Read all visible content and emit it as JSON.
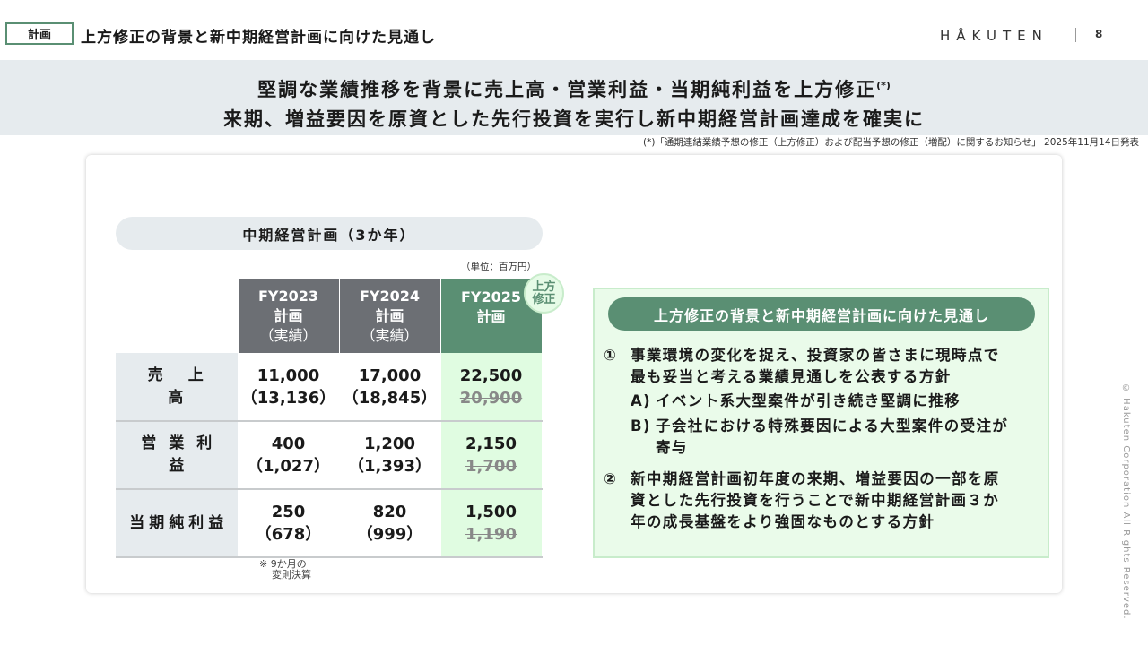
{
  "header": {
    "tag": "計画",
    "title": "上方修正の背景と新中期経営計画に向けた見通し",
    "logo": "HÅKUTEN",
    "page_number": "8"
  },
  "banner": {
    "line1": "堅調な業績推移を背景に売上高・営業利益・当期純利益を上方修正",
    "line1_mark": "(*)",
    "line2": "来期、増益要因を原資とした先行投資を実行し新中期経営計画達成を確実に"
  },
  "footnote": "(*)「通期連結業績予想の修正（上方修正）および配当予想の修正（増配）に関するお知らせ」 2025年11月14日発表",
  "plan": {
    "title": "中期経営計画（3か年）",
    "unit": "（単位：百万円）",
    "badge": "上方\n修正",
    "columns": [
      {
        "fy": "FY2023",
        "l1": "計画",
        "l2": "（実績）"
      },
      {
        "fy": "FY2024",
        "l1": "計画",
        "l2": "（実績）"
      },
      {
        "fy": "FY2025",
        "l1": "計画",
        "l2": ""
      }
    ],
    "rows": [
      {
        "label": "売上高",
        "c1": "11,000",
        "c1b": "（13,136）",
        "c2": "17,000",
        "c2b": "（18,845）",
        "c3": "22,500",
        "c3_old": "20,900"
      },
      {
        "label": "営業利益",
        "c1": "400",
        "c1b": "（1,027）",
        "c2": "1,200",
        "c2b": "（1,393）",
        "c3": "2,150",
        "c3_old": "1,700"
      },
      {
        "label": "当期純利益",
        "c1": "250",
        "c1b": "（678）",
        "c2": "820",
        "c2b": "（999）",
        "c3": "1,500",
        "c3_old": "1,190"
      }
    ],
    "note_l1": "※ 9か月の",
    "note_l2": "変則決算"
  },
  "outlook": {
    "title": "上方修正の背景と新中期経営計画に向けた見通し",
    "i1_num": "①",
    "i1_l1": "事業環境の変化を捉え、投資家の皆さまに現時点で",
    "i1_l2": "最も妥当と考える業績見通しを公表する方針",
    "a_mark": "A)",
    "a_text": "イベント系大型案件が引き続き堅調に推移",
    "b_mark": "B)",
    "b_l1": "子会社における特殊要因による大型案件の受注が",
    "b_l2": "寄与",
    "i2_num": "②",
    "i2_l1": "新中期経営計画初年度の来期、増益要因の一部を原",
    "i2_l2": "資とした先行投資を行うことで新中期経営計画３か",
    "i2_l3": "年の成長基盤をより強固なものとする方針"
  },
  "copyright": "© Hakuten Corporation All Rights Reserved.",
  "colors": {
    "accent": "#5a8f73",
    "gray_header": "#6c6f74",
    "light_green": "#e0fce1",
    "banner": "#e6ebee"
  }
}
